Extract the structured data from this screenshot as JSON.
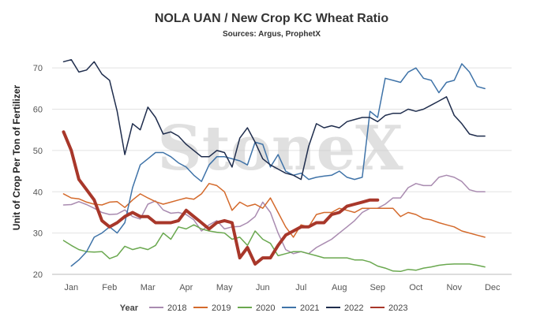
{
  "chart_data": {
    "type": "line",
    "title": "NOLA UAN / New Crop KC Wheat Ratio",
    "subtitle": "Sources: Argus, ProphetX",
    "xlabel": "",
    "ylabel": "Unit of Crop Per Ton of Fertilizer",
    "ylim": [
      20,
      75
    ],
    "xlim": [
      0,
      12
    ],
    "yticks": [
      20,
      30,
      40,
      50,
      60,
      70
    ],
    "xtick_labels": [
      "Jan",
      "Feb",
      "Mar",
      "Apr",
      "May",
      "Jun",
      "Jul",
      "Aug",
      "Sep",
      "Oct",
      "Nov",
      "Dec"
    ],
    "xtick_positions": [
      0.5,
      1.5,
      2.5,
      3.5,
      4.5,
      5.5,
      6.5,
      7.5,
      8.5,
      9.5,
      10.5,
      11.5
    ],
    "grid": true,
    "legend_position": "bottom",
    "legend_title": "Year",
    "watermark": "StoneX",
    "series": [
      {
        "name": "2018",
        "color": "#a98bb0",
        "width": 1.5,
        "x": [
          0.3,
          0.5,
          0.7,
          0.9,
          1.1,
          1.3,
          1.5,
          1.7,
          1.9,
          2.1,
          2.3,
          2.5,
          2.7,
          2.9,
          3.1,
          3.3,
          3.5,
          3.7,
          3.9,
          4.1,
          4.3,
          4.5,
          4.7,
          4.9,
          5.1,
          5.3,
          5.5,
          5.7,
          5.9,
          6.1,
          6.3,
          6.5,
          6.7,
          6.9,
          7.1,
          7.3,
          7.5,
          7.7,
          7.9,
          8.1,
          8.3,
          8.5,
          8.7,
          8.9,
          9.1,
          9.3,
          9.5,
          9.7,
          9.9,
          10.1,
          10.3,
          10.5,
          10.7,
          10.9,
          11.1,
          11.3
        ],
        "values": [
          36.8,
          36.9,
          37.6,
          36.9,
          36.0,
          35.0,
          34.5,
          34.6,
          35.6,
          34.0,
          33.4,
          37.0,
          37.8,
          35.6,
          34.8,
          35.0,
          34.5,
          33.2,
          30.5,
          32.0,
          33.0,
          31.0,
          31.5,
          31.6,
          32.5,
          34.0,
          37.5,
          35.0,
          30.0,
          26.0,
          25.0,
          25.5,
          25.0,
          26.5,
          27.5,
          28.5,
          30.0,
          31.5,
          33.0,
          35.0,
          36.0,
          36.0,
          37.0,
          38.5,
          38.5,
          41.0,
          42.0,
          41.5,
          41.5,
          43.5,
          44.0,
          43.5,
          42.5,
          40.5,
          40.0,
          40.0
        ]
      },
      {
        "name": "2019",
        "color": "#d46a2c",
        "width": 1.5,
        "x": [
          0.3,
          0.5,
          0.7,
          0.9,
          1.1,
          1.3,
          1.5,
          1.7,
          1.9,
          2.1,
          2.3,
          2.5,
          2.7,
          2.9,
          3.1,
          3.3,
          3.5,
          3.7,
          3.9,
          4.1,
          4.3,
          4.5,
          4.7,
          4.9,
          5.1,
          5.3,
          5.5,
          5.7,
          5.9,
          6.1,
          6.3,
          6.5,
          6.7,
          6.9,
          7.1,
          7.3,
          7.5,
          7.7,
          7.9,
          8.1,
          8.3,
          8.5,
          8.7,
          8.9,
          9.1,
          9.3,
          9.5,
          9.7,
          9.9,
          10.1,
          10.3,
          10.5,
          10.7,
          10.9,
          11.1,
          11.3
        ],
        "values": [
          39.5,
          38.5,
          38.3,
          37.5,
          37.0,
          36.8,
          37.5,
          37.6,
          36.2,
          38.0,
          39.5,
          38.5,
          37.6,
          37.0,
          37.5,
          38.0,
          38.5,
          38.2,
          39.5,
          42.0,
          41.5,
          40.0,
          35.5,
          37.5,
          36.5,
          37.0,
          36.0,
          38.5,
          35.0,
          31.5,
          29.0,
          32.0,
          31.5,
          34.5,
          35.0,
          35.0,
          36.0,
          35.5,
          35.0,
          36.0,
          36.0,
          36.0,
          36.0,
          36.0,
          34.0,
          35.0,
          34.5,
          33.5,
          33.2,
          32.5,
          32.0,
          31.5,
          30.5,
          30.0,
          29.5,
          29.0
        ]
      },
      {
        "name": "2020",
        "color": "#6aa84f",
        "width": 1.5,
        "x": [
          0.3,
          0.5,
          0.7,
          0.9,
          1.1,
          1.3,
          1.5,
          1.7,
          1.9,
          2.1,
          2.3,
          2.5,
          2.7,
          2.9,
          3.1,
          3.3,
          3.5,
          3.7,
          3.9,
          4.1,
          4.3,
          4.5,
          4.7,
          4.9,
          5.1,
          5.3,
          5.5,
          5.7,
          5.9,
          6.1,
          6.3,
          6.5,
          6.7,
          6.9,
          7.1,
          7.3,
          7.5,
          7.7,
          7.9,
          8.1,
          8.3,
          8.5,
          8.7,
          8.9,
          9.1,
          9.3,
          9.5,
          9.7,
          9.9,
          10.1,
          10.3,
          10.5,
          10.7,
          10.9,
          11.1,
          11.3
        ],
        "values": [
          28.2,
          27.0,
          26.0,
          25.5,
          25.4,
          25.5,
          23.8,
          24.5,
          26.8,
          26.0,
          26.5,
          26.0,
          27.0,
          30.0,
          28.5,
          31.5,
          31.0,
          32.0,
          31.0,
          30.5,
          30.2,
          30.0,
          28.5,
          29.0,
          27.0,
          30.5,
          28.5,
          27.5,
          24.5,
          25.0,
          25.5,
          25.5,
          25.0,
          24.5,
          24.0,
          24.0,
          24.0,
          24.0,
          23.5,
          23.5,
          23.0,
          22.0,
          21.5,
          20.8,
          20.7,
          21.2,
          21.0,
          21.5,
          21.8,
          22.2,
          22.4,
          22.5,
          22.5,
          22.5,
          22.2,
          21.8
        ]
      },
      {
        "name": "2021",
        "color": "#3f73a8",
        "width": 1.5,
        "x": [
          0.5,
          0.7,
          0.9,
          1.1,
          1.3,
          1.5,
          1.7,
          1.9,
          2.1,
          2.3,
          2.5,
          2.7,
          2.9,
          3.1,
          3.3,
          3.5,
          3.7,
          3.9,
          4.1,
          4.3,
          4.5,
          4.7,
          4.9,
          5.1,
          5.3,
          5.5,
          5.7,
          5.9,
          6.1,
          6.3,
          6.5,
          6.7,
          6.9,
          7.1,
          7.3,
          7.5,
          7.7,
          7.9,
          8.1,
          8.3,
          8.5,
          8.7,
          8.9,
          9.1,
          9.3,
          9.5,
          9.7,
          9.9,
          10.1,
          10.3,
          10.5,
          10.7,
          10.9,
          11.1,
          11.3
        ],
        "values": [
          22.0,
          23.5,
          25.5,
          29.0,
          30.0,
          31.5,
          30.0,
          32.5,
          41.0,
          46.5,
          48.0,
          49.5,
          49.5,
          48.5,
          47.0,
          46.0,
          44.0,
          42.5,
          46.5,
          48.5,
          48.5,
          48.0,
          47.5,
          46.5,
          52.0,
          51.5,
          46.0,
          49.0,
          45.0,
          44.0,
          44.5,
          43.0,
          43.5,
          43.8,
          44.0,
          45.0,
          43.5,
          43.0,
          43.5,
          59.5,
          58.0,
          67.5,
          67.0,
          66.5,
          69.0,
          70.0,
          67.5,
          67.0,
          64.0,
          66.5,
          67.0,
          71.0,
          69.0,
          65.5,
          65.0
        ]
      },
      {
        "name": "2022",
        "color": "#1f2d4d",
        "width": 1.5,
        "x": [
          0.3,
          0.5,
          0.7,
          0.9,
          1.1,
          1.3,
          1.5,
          1.7,
          1.9,
          2.1,
          2.3,
          2.5,
          2.7,
          2.9,
          3.1,
          3.3,
          3.5,
          3.7,
          3.9,
          4.1,
          4.3,
          4.5,
          4.7,
          4.9,
          5.1,
          5.3,
          5.5,
          5.7,
          5.9,
          6.1,
          6.3,
          6.5,
          6.7,
          6.9,
          7.1,
          7.3,
          7.5,
          7.7,
          7.9,
          8.1,
          8.3,
          8.5,
          8.7,
          8.9,
          9.1,
          9.3,
          9.5,
          9.7,
          9.9,
          10.1,
          10.3,
          10.5,
          10.7,
          10.9,
          11.1,
          11.3
        ],
        "values": [
          71.5,
          72.0,
          69.0,
          69.5,
          71.5,
          68.5,
          67.0,
          59.5,
          49.0,
          56.5,
          55.0,
          60.5,
          58.0,
          54.0,
          54.5,
          53.5,
          51.5,
          50.0,
          48.5,
          48.5,
          50.0,
          49.5,
          46.0,
          53.0,
          55.5,
          52.0,
          48.0,
          46.5,
          45.5,
          44.5,
          44.0,
          43.0,
          51.0,
          56.5,
          55.5,
          56.0,
          55.5,
          57.0,
          57.5,
          58.0,
          58.0,
          57.0,
          58.5,
          59.0,
          59.0,
          60.0,
          59.5,
          60.0,
          61.0,
          62.0,
          63.0,
          58.5,
          56.5,
          54.0,
          53.5,
          53.5
        ]
      },
      {
        "name": "2023",
        "color": "#a8372a",
        "width": 4,
        "x": [
          0.3,
          0.5,
          0.7,
          0.9,
          1.1,
          1.3,
          1.5,
          1.7,
          1.9,
          2.1,
          2.3,
          2.5,
          2.7,
          2.9,
          3.1,
          3.3,
          3.5,
          3.7,
          3.9,
          4.1,
          4.3,
          4.5,
          4.7,
          4.9,
          5.1,
          5.3,
          5.5,
          5.7,
          5.9,
          6.1,
          6.3,
          6.5,
          6.7,
          6.9,
          7.1,
          7.3,
          7.5,
          7.7,
          7.9,
          8.1,
          8.3,
          8.5
        ],
        "values": [
          54.5,
          50.0,
          43.0,
          40.5,
          38.0,
          33.0,
          31.5,
          32.5,
          34.0,
          35.0,
          34.0,
          34.0,
          32.5,
          32.5,
          32.5,
          33.0,
          35.5,
          34.0,
          32.5,
          31.0,
          32.5,
          33.0,
          32.5,
          24.0,
          26.5,
          22.5,
          24.0,
          24.0,
          27.0,
          29.5,
          30.5,
          31.5,
          31.5,
          32.5,
          32.5,
          34.5,
          35.0,
          36.5,
          37.0,
          37.5,
          38.0,
          38.0
        ]
      }
    ]
  }
}
